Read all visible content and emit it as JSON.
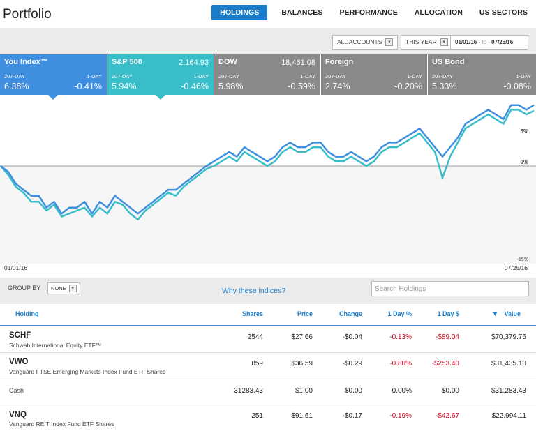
{
  "header": {
    "title": "Portfolio",
    "nav": [
      "HOLDINGS",
      "BALANCES",
      "PERFORMANCE",
      "ALLOCATION",
      "US SECTORS"
    ]
  },
  "controls": {
    "accounts": "ALL ACCOUNTS",
    "period": "THIS YEAR",
    "date_from": "01/01/16",
    "date_sep": "- to -",
    "date_to": "07/25/16"
  },
  "indices": [
    {
      "name": "You Index™",
      "price": "",
      "sub_left": "207-DAY",
      "sub_right": "1-DAY",
      "val_left": "6.38%",
      "val_right": "-0.41%",
      "color": "#3f8ee0"
    },
    {
      "name": "S&P 500",
      "price": "2,164.93",
      "sub_left": "207-DAY",
      "sub_right": "1-DAY",
      "val_left": "5.94%",
      "val_right": "-0.46%",
      "color": "#39bdc8"
    },
    {
      "name": "DOW",
      "price": "18,461.08",
      "sub_left": "207-DAY",
      "sub_right": "1-DAY",
      "val_left": "5.98%",
      "val_right": "-0.59%",
      "color": "#8a8a8a"
    },
    {
      "name": "Foreign",
      "price": "",
      "sub_left": "207-DAY",
      "sub_right": "1-DAY",
      "val_left": "2.74%",
      "val_right": "-0.20%",
      "color": "#8a8a8a"
    },
    {
      "name": "US Bond",
      "price": "",
      "sub_left": "207-DAY",
      "sub_right": "1-DAY",
      "val_left": "5.33%",
      "val_right": "-0.08%",
      "color": "#8a8a8a"
    }
  ],
  "chart": {
    "labels": {
      "top": "5%",
      "zero": "0%",
      "bottom": "-15%"
    },
    "start_date": "01/01/16",
    "end_date": "07/25/16"
  },
  "chart_data": {
    "type": "line",
    "ylim": [
      -15,
      7
    ],
    "x_start": "01/01/16",
    "x_end": "07/25/16",
    "series": [
      {
        "name": "You Index™",
        "color": "#3f8ee0",
        "values": [
          0,
          -1,
          -3,
          -4,
          -5,
          -5,
          -7,
          -6,
          -8,
          -7,
          -7,
          -6,
          -8,
          -6,
          -7,
          -5,
          -6,
          -7,
          -8,
          -7,
          -6,
          -5,
          -4,
          -4,
          -3,
          -2,
          -1,
          0,
          0.5,
          1,
          1.5,
          1,
          2,
          1.5,
          1,
          0.5,
          1,
          2,
          2.5,
          2,
          2,
          2.5,
          2.5,
          1.5,
          1,
          1,
          1.5,
          1,
          0.5,
          1,
          2,
          2.5,
          2.5,
          3,
          3.5,
          4,
          3,
          2,
          1,
          2,
          3,
          4.5,
          5,
          5.5,
          6,
          5.5,
          5,
          6.5,
          6.5,
          6,
          6.5
        ]
      },
      {
        "name": "S&P 500",
        "color": "#39bdc8",
        "values": [
          0,
          -1.5,
          -3.5,
          -4.5,
          -6,
          -6,
          -7.5,
          -6.5,
          -8.5,
          -8,
          -7.5,
          -7,
          -8.5,
          -7,
          -8,
          -6,
          -6.5,
          -8,
          -9,
          -7.5,
          -6.5,
          -5.5,
          -4.5,
          -5,
          -3.5,
          -2.5,
          -1.5,
          -0.5,
          0,
          0.5,
          1,
          0.5,
          1.5,
          1,
          0.5,
          0,
          0.5,
          1.5,
          2,
          1.5,
          1.5,
          2,
          2,
          1,
          0.5,
          0.5,
          1,
          0.5,
          0,
          0.5,
          1.5,
          2,
          2,
          2.5,
          3,
          3.5,
          2.5,
          1.5,
          -2,
          1,
          2.5,
          4,
          4.5,
          5,
          5.5,
          5,
          4.5,
          6,
          6,
          5.5,
          5.9
        ]
      }
    ]
  },
  "groupbar": {
    "label": "GROUP BY",
    "value": "NONE",
    "why_link": "Why these indices?",
    "search_placeholder": "Search Holdings"
  },
  "table": {
    "headers": [
      "Holding",
      "Shares",
      "Price",
      "Change",
      "1 Day %",
      "1 Day $",
      "Value"
    ],
    "sort_glyph": "▼",
    "rows": [
      {
        "symbol": "SCHF",
        "name": "Schwab International Equity ETF™",
        "shares": "2544",
        "price": "$27.66",
        "change": "-$0.04",
        "day_pct": "-0.13%",
        "day_usd": "-$89.04",
        "value": "$70,379.76",
        "neg": true
      },
      {
        "symbol": "VWO",
        "name": "Vanguard FTSE Emerging Markets Index Fund ETF Shares",
        "shares": "859",
        "price": "$36.59",
        "change": "-$0.29",
        "day_pct": "-0.80%",
        "day_usd": "-$253.40",
        "value": "$31,435.10",
        "neg": true
      },
      {
        "symbol": "",
        "name": "Cash",
        "shares": "31283.43",
        "price": "$1.00",
        "change": "$0.00",
        "day_pct": "0.00%",
        "day_usd": "$0.00",
        "value": "$31,283.43",
        "neg": false
      },
      {
        "symbol": "VNQ",
        "name": "Vanguard REIT Index Fund ETF Shares",
        "shares": "251",
        "price": "$91.61",
        "change": "-$0.17",
        "day_pct": "-0.19%",
        "day_usd": "-$42.67",
        "value": "$22,994.11",
        "neg": true
      }
    ]
  }
}
